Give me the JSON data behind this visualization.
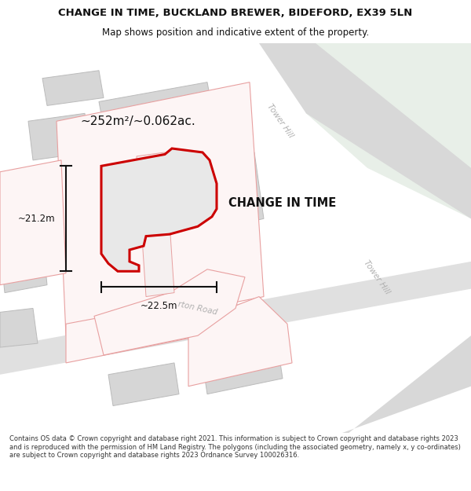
{
  "title": "CHANGE IN TIME, BUCKLAND BREWER, BIDEFORD, EX39 5LN",
  "subtitle": "Map shows position and indicative extent of the property.",
  "footer": "Contains OS data © Crown copyright and database right 2021. This information is subject to Crown copyright and database rights 2023 and is reproduced with the permission of HM Land Registry. The polygons (including the associated geometry, namely x, y co-ordinates) are subject to Crown copyright and database rights 2023 Ordnance Survey 100026316.",
  "property_label": "CHANGE IN TIME",
  "area_label": "~252m²/~0.062ac.",
  "dim_width": "~22.5m",
  "dim_height": "~21.2m",
  "road_label1": "Tower Hill",
  "road_label2": "Tower Hill",
  "road_label3": "rton Road",
  "map_bg": "#ffffff",
  "green_fill": "#e8efe8",
  "road_fill": "#d8d8d8",
  "building_fill": "#d6d6d6",
  "building_edge": "#bbbbbb",
  "parcel_fill": "#fdf5f5",
  "parcel_edge": "#e8a0a0",
  "property_fill": "#e8e8e8",
  "property_outline": "#cc0000",
  "dim_color": "#111111",
  "text_color": "#111111",
  "road_text_color": "#b0b0b0",
  "title_color": "#111111"
}
